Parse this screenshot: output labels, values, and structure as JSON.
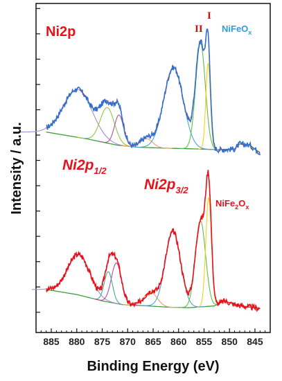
{
  "chart_data": {
    "type": "line",
    "panel_title": "Ni2p",
    "xlabel": "Binding Energy (eV)",
    "ylabel": "Intensity / a.u.",
    "xlim": [
      888,
      842
    ],
    "x_reversed": true,
    "xticks": [
      885,
      880,
      875,
      870,
      865,
      860,
      855,
      850,
      845
    ],
    "y_tick_labels": false,
    "annotations": {
      "region_left": {
        "main": "Ni2p",
        "sub": "1/2"
      },
      "region_right": {
        "main": "Ni2p",
        "sub": "3/2"
      },
      "peak_I": "I",
      "peak_II": "II"
    },
    "samples": [
      {
        "label_main": "NiFeO",
        "label_sub": "x",
        "color": "#2f6fd0",
        "fit_color": "#e8111a",
        "offset": 6.3,
        "baseline": [
          [
            886,
            0.82
          ],
          [
            878,
            0.55
          ],
          [
            872,
            0.3
          ],
          [
            868,
            0.22
          ],
          [
            862,
            0.18
          ],
          [
            856,
            0.15
          ],
          [
            852,
            0.12
          ],
          [
            849,
            0.15
          ],
          [
            848,
            0.35
          ],
          [
            846,
            0.3
          ],
          [
            844,
            0.0
          ]
        ],
        "components": [
          {
            "center": 879.8,
            "height": 1.9,
            "width": 2.8,
            "color": "#a78bcc"
          },
          {
            "center": 874.0,
            "height": 1.4,
            "width": 1.4,
            "color": "#8cc63f"
          },
          {
            "center": 871.7,
            "height": 1.2,
            "width": 0.9,
            "color": "#b04ea0"
          },
          {
            "center": 866.3,
            "height": 0.35,
            "width": 1.2,
            "color": "#f0a060"
          },
          {
            "center": 861.0,
            "height": 3.2,
            "width": 1.9,
            "color": "#4aa3d8"
          },
          {
            "center": 855.7,
            "height": 4.2,
            "width": 0.95,
            "color": "#5cbf4a"
          },
          {
            "center": 854.2,
            "height": 3.4,
            "width": 0.45,
            "color": "#f2d21a"
          }
        ]
      },
      {
        "label_main": "NiFe",
        "label_sub1": "2",
        "label_mid": "O",
        "label_sub2": "x",
        "color": "#e8111a",
        "fit_color": "#e8111a",
        "offset": 0.0,
        "baseline": [
          [
            886,
            0.9
          ],
          [
            880,
            0.7
          ],
          [
            875,
            0.45
          ],
          [
            871,
            0.3
          ],
          [
            866,
            0.25
          ],
          [
            862,
            0.2
          ],
          [
            858,
            0.18
          ],
          [
            853,
            0.25
          ],
          [
            851,
            0.45
          ],
          [
            849,
            0.3
          ],
          [
            846,
            0.2
          ],
          [
            844,
            0.15
          ]
        ],
        "components": [
          {
            "center": 879.6,
            "height": 1.6,
            "width": 2.2,
            "color": "#a78bcc"
          },
          {
            "center": 873.8,
            "height": 1.2,
            "width": 0.8,
            "color": "#3fae8f"
          },
          {
            "center": 872.2,
            "height": 1.6,
            "width": 1.0,
            "color": "#b04ea0"
          },
          {
            "center": 865.5,
            "height": 0.55,
            "width": 1.3,
            "color": "#f0a060"
          },
          {
            "center": 861.1,
            "height": 3.0,
            "width": 1.5,
            "color": "#4aa3d8"
          },
          {
            "center": 855.7,
            "height": 3.4,
            "width": 1.0,
            "color": "#5cbf4a"
          },
          {
            "center": 854.1,
            "height": 4.3,
            "width": 0.55,
            "color": "#f2d21a"
          }
        ]
      }
    ],
    "ylim": [
      -0.8,
      12.2
    ]
  }
}
